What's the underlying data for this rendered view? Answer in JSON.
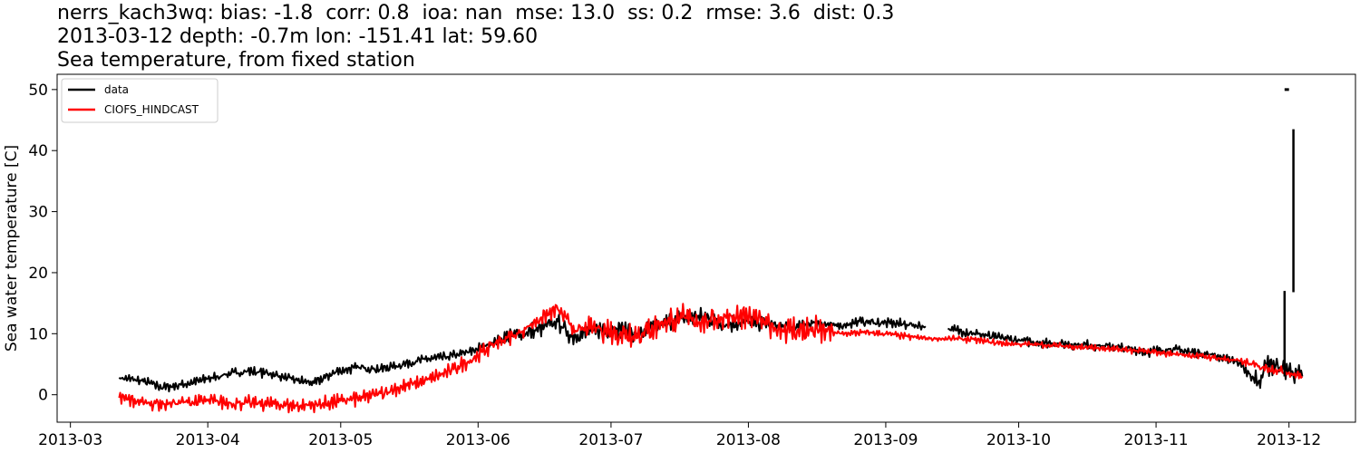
{
  "title_lines": [
    "nerrs_kach3wq: bias: -1.8  corr: 0.8  ioa: nan  mse: 13.0  ss: 0.2  rmse: 3.6  dist: 0.3",
    "2013-03-12 depth: -0.7m lon: -151.41 lat: 59.60",
    "Sea temperature, from fixed station"
  ],
  "chart_data": {
    "type": "line",
    "ylabel": "Sea water temperature [C]",
    "xlabel": "",
    "xlim": [
      "2013-02-26",
      "2013-12-16"
    ],
    "ylim": [
      -4.5,
      52.5
    ],
    "x_ticks": [
      "2013-03",
      "2013-04",
      "2013-05",
      "2013-06",
      "2013-07",
      "2013-08",
      "2013-09",
      "2013-10",
      "2013-11",
      "2013-12"
    ],
    "y_ticks": [
      0,
      10,
      20,
      30,
      40,
      50
    ],
    "grid": false,
    "legend_position": "top-left",
    "series": [
      {
        "name": "data",
        "color": "#000000",
        "points": [
          [
            "2013-03-12",
            2.8
          ],
          [
            "2013-03-17",
            2.3
          ],
          [
            "2013-03-22",
            1.2
          ],
          [
            "2013-03-26",
            1.6
          ],
          [
            "2013-04-01",
            2.6
          ],
          [
            "2013-04-05",
            3.3
          ],
          [
            "2013-04-10",
            3.9
          ],
          [
            "2013-04-15",
            3.5
          ],
          [
            "2013-04-20",
            2.5
          ],
          [
            "2013-04-25",
            1.9
          ],
          [
            "2013-04-30",
            3.8
          ],
          [
            "2013-05-05",
            4.5
          ],
          [
            "2013-05-10",
            4.2
          ],
          [
            "2013-05-15",
            5.0
          ],
          [
            "2013-05-20",
            5.8
          ],
          [
            "2013-05-25",
            6.2
          ],
          [
            "2013-05-30",
            7.0
          ],
          [
            "2013-06-04",
            8.5
          ],
          [
            "2013-06-09",
            9.8
          ],
          [
            "2013-06-14",
            10.5
          ],
          [
            "2013-06-19",
            12.0
          ],
          [
            "2013-06-22",
            9.5
          ],
          [
            "2013-06-27",
            10.5
          ],
          [
            "2013-07-02",
            11.0
          ],
          [
            "2013-07-07",
            9.8
          ],
          [
            "2013-07-12",
            11.5
          ],
          [
            "2013-07-17",
            12.5
          ],
          [
            "2013-07-22",
            12.8
          ],
          [
            "2013-07-27",
            11.5
          ],
          [
            "2013-08-01",
            12.0
          ],
          [
            "2013-08-06",
            11.5
          ],
          [
            "2013-08-11",
            11.0
          ],
          [
            "2013-08-16",
            11.8
          ],
          [
            "2013-08-21",
            11.2
          ],
          [
            "2013-08-26",
            12.0
          ],
          [
            "2013-08-31",
            11.8
          ],
          [
            "2013-09-05",
            11.6
          ],
          [
            "2013-09-10",
            11.2
          ],
          null,
          [
            "2013-09-15",
            10.8
          ],
          [
            "2013-09-20",
            10.2
          ],
          [
            "2013-09-25",
            9.5
          ],
          [
            "2013-09-30",
            9.0
          ],
          [
            "2013-10-05",
            8.6
          ],
          [
            "2013-10-10",
            8.4
          ],
          [
            "2013-10-15",
            8.2
          ],
          [
            "2013-10-20",
            8.0
          ],
          [
            "2013-10-25",
            7.6
          ],
          [
            "2013-10-30",
            7.0
          ],
          [
            "2013-11-04",
            7.5
          ],
          [
            "2013-11-09",
            7.0
          ],
          [
            "2013-11-14",
            6.5
          ],
          [
            "2013-11-19",
            5.5
          ],
          [
            "2013-11-22",
            3.5
          ],
          [
            "2013-11-24",
            2.0
          ],
          [
            "2013-11-26",
            5.0
          ],
          [
            "2013-11-29",
            4.5
          ],
          [
            "2013-12-01",
            4.0
          ],
          [
            "2013-12-04",
            3.0
          ]
        ]
      },
      {
        "name": "CIOFS_HINDCAST",
        "color": "#ff0000",
        "points": [
          [
            "2013-03-12",
            -0.5
          ],
          [
            "2013-03-17",
            -1.2
          ],
          [
            "2013-03-22",
            -1.5
          ],
          [
            "2013-03-27",
            -1.2
          ],
          [
            "2013-04-01",
            -1.0
          ],
          [
            "2013-04-06",
            -1.3
          ],
          [
            "2013-04-11",
            -1.4
          ],
          [
            "2013-04-16",
            -1.5
          ],
          [
            "2013-04-21",
            -1.8
          ],
          [
            "2013-04-26",
            -1.6
          ],
          [
            "2013-05-01",
            -1.0
          ],
          [
            "2013-05-06",
            -0.5
          ],
          [
            "2013-05-11",
            0.5
          ],
          [
            "2013-05-16",
            1.5
          ],
          [
            "2013-05-21",
            2.5
          ],
          [
            "2013-05-26",
            4.0
          ],
          [
            "2013-05-31",
            6.0
          ],
          [
            "2013-06-05",
            8.5
          ],
          [
            "2013-06-10",
            10.0
          ],
          [
            "2013-06-15",
            12.5
          ],
          [
            "2013-06-19",
            14.0
          ],
          [
            "2013-06-23",
            10.5
          ],
          [
            "2013-06-28",
            11.0
          ],
          [
            "2013-07-03",
            10.0
          ],
          [
            "2013-07-08",
            10.0
          ],
          [
            "2013-07-13",
            12.0
          ],
          [
            "2013-07-18",
            12.5
          ],
          [
            "2013-07-23",
            12.0
          ],
          [
            "2013-07-28",
            13.0
          ],
          [
            "2013-08-02",
            12.5
          ],
          [
            "2013-08-07",
            11.0
          ],
          [
            "2013-08-12",
            10.5
          ],
          [
            "2013-08-17",
            10.5
          ],
          [
            "2013-08-22",
            10.0
          ],
          [
            "2013-08-27",
            10.2
          ],
          [
            "2013-09-01",
            10.0
          ],
          [
            "2013-09-06",
            9.5
          ],
          [
            "2013-09-11",
            9.2
          ],
          [
            "2013-09-16",
            9.2
          ],
          [
            "2013-09-21",
            9.0
          ],
          [
            "2013-09-26",
            8.5
          ],
          [
            "2013-10-01",
            8.3
          ],
          [
            "2013-10-06",
            8.2
          ],
          [
            "2013-10-11",
            8.0
          ],
          [
            "2013-10-16",
            7.8
          ],
          [
            "2013-10-21",
            7.5
          ],
          [
            "2013-10-26",
            7.3
          ],
          [
            "2013-10-31",
            7.0
          ],
          [
            "2013-11-05",
            6.7
          ],
          [
            "2013-11-10",
            6.4
          ],
          [
            "2013-11-15",
            6.0
          ],
          [
            "2013-11-20",
            5.5
          ],
          [
            "2013-11-25",
            4.5
          ],
          [
            "2013-11-30",
            3.8
          ],
          [
            "2013-12-04",
            3.0
          ]
        ]
      }
    ],
    "annotations": [
      {
        "type": "vertical-segment",
        "x": "2013-11-30",
        "y0": 3.0,
        "y1": 17.0,
        "color": "#000000"
      },
      {
        "type": "vertical-segment",
        "x": "2013-12-02",
        "y0": 16.8,
        "y1": 43.5,
        "color": "#000000"
      },
      {
        "type": "horizontal-segment",
        "x0": "2013-11-30",
        "x1": "2013-12-01",
        "y": 50.0,
        "color": "#000000"
      }
    ]
  }
}
